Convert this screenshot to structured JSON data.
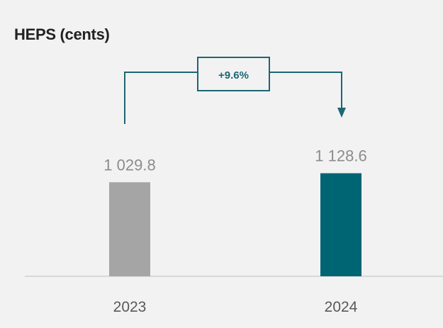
{
  "chart_data": {
    "type": "bar",
    "title": "HEPS (cents)",
    "categories": [
      "2023",
      "2024"
    ],
    "values": [
      1029.8,
      1128.6
    ],
    "value_labels": [
      "1 029.8",
      "1 128.6"
    ],
    "colors": [
      "#a5a5a5",
      "#006573"
    ],
    "annotation": {
      "text": "+9.6%",
      "from": "2023",
      "to": "2024",
      "color": "#1d6673"
    },
    "grid": false,
    "legend": "none"
  }
}
